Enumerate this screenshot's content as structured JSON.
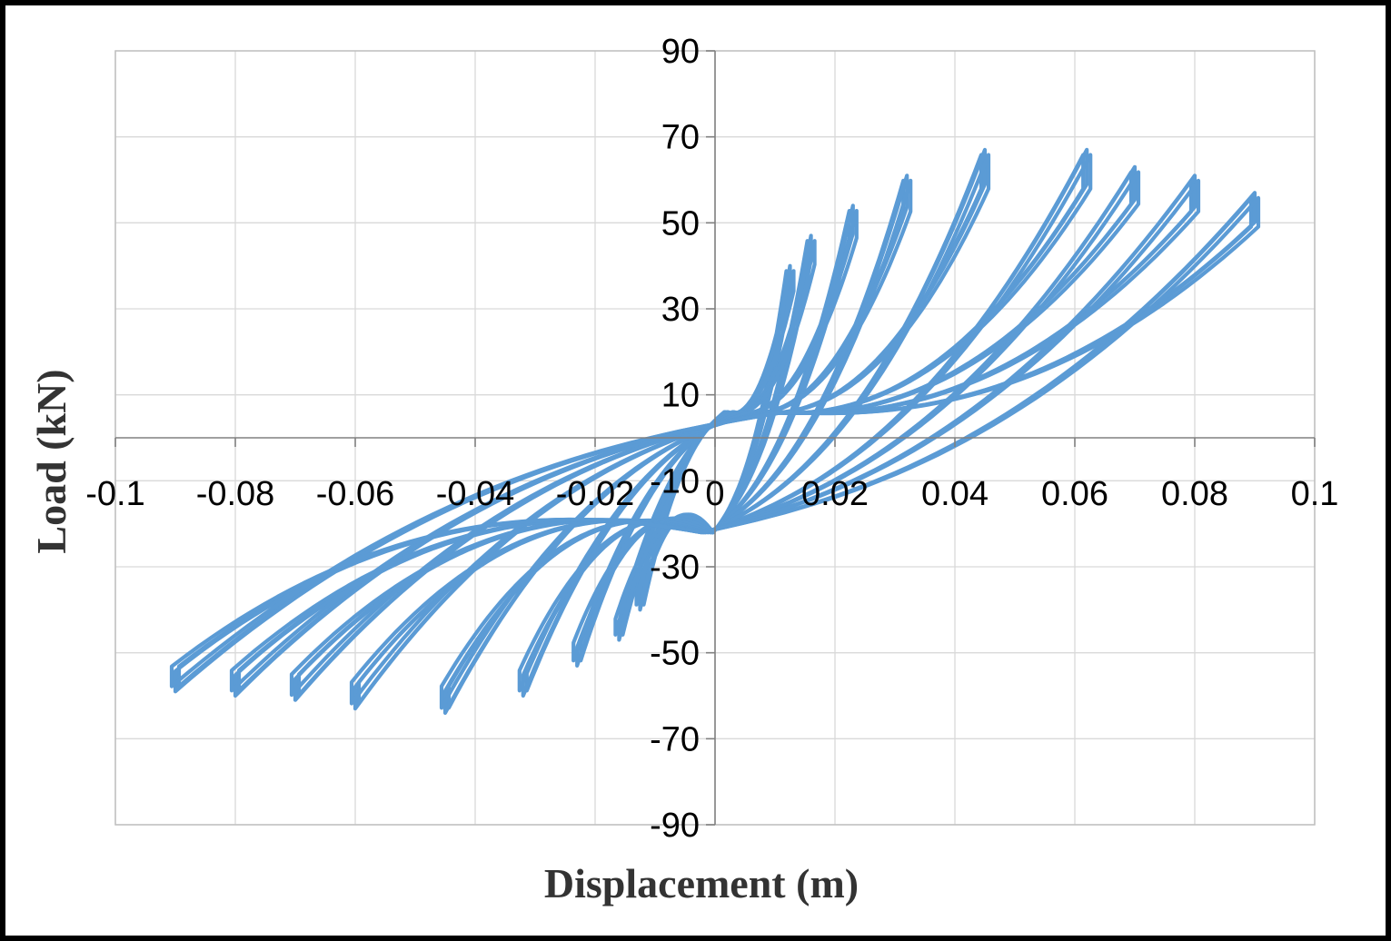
{
  "chart_data": {
    "type": "line",
    "title": "",
    "xlabel": "Displacement (m)",
    "ylabel": "Load (kN)",
    "xlim": [
      -0.1,
      0.1
    ],
    "ylim": [
      -90,
      90
    ],
    "x_ticks": [
      -0.1,
      -0.08,
      -0.06,
      -0.04,
      -0.02,
      0,
      0.02,
      0.04,
      0.06,
      0.08,
      0.1
    ],
    "x_tick_labels": [
      "-0.1",
      "-0.08",
      "-0.06",
      "-0.04",
      "-0.02",
      "0",
      "0.02",
      "0.04",
      "0.06",
      "0.08",
      "0.1"
    ],
    "y_ticks": [
      90,
      70,
      50,
      30,
      10,
      -10,
      -30,
      -50,
      -70,
      -90
    ],
    "y_tick_labels": [
      "90",
      "70",
      "50",
      "30",
      "10",
      "-10",
      "-30",
      "-50",
      "-70",
      "-90"
    ],
    "grid": true,
    "legend": "none",
    "series_color": "#5b9bd5",
    "series": [
      {
        "name": "",
        "cycles": [
          {
            "d_max": 0.0125,
            "p_max": 40,
            "d_min": -0.0125,
            "p_min": -40
          },
          {
            "d_max": 0.016,
            "p_max": 47,
            "d_min": -0.016,
            "p_min": -47
          },
          {
            "d_max": 0.023,
            "p_max": 54,
            "d_min": -0.023,
            "p_min": -53
          },
          {
            "d_max": 0.032,
            "p_max": 61,
            "d_min": -0.032,
            "p_min": -60
          },
          {
            "d_max": 0.045,
            "p_max": 67,
            "d_min": -0.045,
            "p_min": -64
          },
          {
            "d_max": 0.062,
            "p_max": 67,
            "d_min": -0.06,
            "p_min": -63
          },
          {
            "d_max": 0.07,
            "p_max": 63,
            "d_min": -0.07,
            "p_min": -61
          },
          {
            "d_max": 0.08,
            "p_max": 61,
            "d_min": -0.08,
            "p_min": -60
          },
          {
            "d_max": 0.09,
            "p_max": 57,
            "d_min": -0.09,
            "p_min": -59
          }
        ]
      }
    ]
  }
}
